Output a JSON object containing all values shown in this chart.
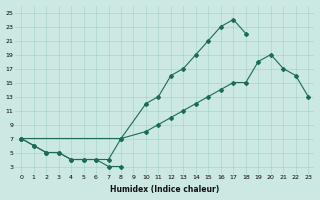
{
  "xlabel": "Humidex (Indice chaleur)",
  "bg_color": "#cce8e3",
  "line_color": "#1a6b5a",
  "grid_color": "#aad4cc",
  "xlim": [
    -0.5,
    23.5
  ],
  "ylim": [
    2,
    26
  ],
  "xticks": [
    0,
    1,
    2,
    3,
    4,
    5,
    6,
    7,
    8,
    9,
    10,
    11,
    12,
    13,
    14,
    15,
    16,
    17,
    18,
    19,
    20,
    21,
    22,
    23
  ],
  "yticks": [
    3,
    5,
    7,
    9,
    11,
    13,
    15,
    17,
    19,
    21,
    23,
    25
  ],
  "line1_x": [
    0,
    1,
    2,
    3,
    4,
    5,
    6,
    7,
    8
  ],
  "line1_y": [
    7,
    6,
    5,
    5,
    4,
    4,
    4,
    3,
    3
  ],
  "line2_x": [
    0,
    1,
    2,
    3,
    4,
    5,
    6,
    7,
    8,
    10,
    11,
    12,
    13,
    14,
    15,
    16,
    17,
    18
  ],
  "line2_y": [
    7,
    6,
    5,
    5,
    4,
    4,
    4,
    4,
    7,
    12,
    13,
    16,
    17,
    19,
    21,
    23,
    24,
    22
  ],
  "line3_x": [
    0,
    8,
    10,
    11,
    12,
    13,
    14,
    15,
    16,
    17,
    18,
    19,
    20,
    21,
    22,
    23
  ],
  "line3_y": [
    7,
    7,
    8,
    9,
    10,
    11,
    12,
    13,
    14,
    15,
    15,
    18,
    19,
    17,
    16,
    13
  ]
}
